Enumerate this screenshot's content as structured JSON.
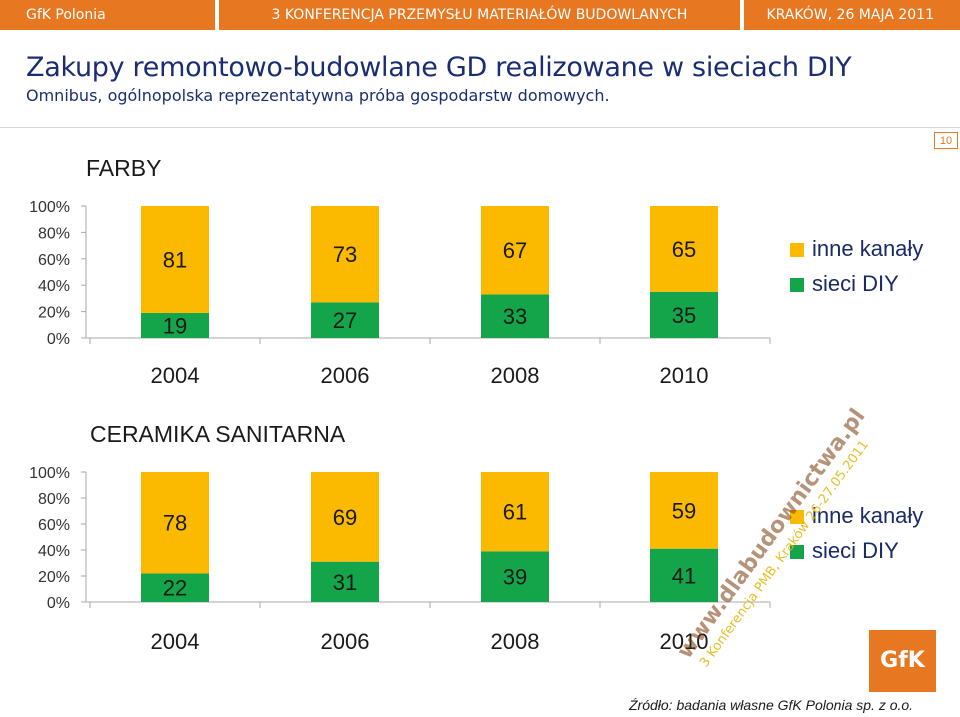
{
  "header": {
    "left": "GfK Polonia",
    "center": "3 KONFERENCJA PRZEMYSŁU MATERIAŁÓW BUDOWLANYCH",
    "right": "KRAKÓW, 26 MAJA 2011"
  },
  "slide": {
    "title": "Zakupy remontowo-budowlane GD realizowane w sieciach DIY",
    "subtitle": "Omnibus, ogólnopolska reprezentatywna próba gospodarstw domowych.",
    "page_number": "10"
  },
  "colors": {
    "accent": "#e87722",
    "inne": "#fbb900",
    "diy": "#14a54a"
  },
  "chart_data": [
    {
      "type": "bar",
      "stacked": true,
      "title": "FARBY",
      "categories": [
        "2004",
        "2006",
        "2008",
        "2010"
      ],
      "yticks": [
        "100%",
        "80%",
        "60%",
        "40%",
        "20%",
        "0%"
      ],
      "ylim": [
        0,
        100
      ],
      "legend_position": "right",
      "series": [
        {
          "name": "sieci DIY",
          "color": "#14a54a",
          "values": [
            19,
            27,
            33,
            35
          ]
        },
        {
          "name": "inne kanały",
          "color": "#fbb900",
          "values": [
            81,
            73,
            67,
            65
          ]
        }
      ]
    },
    {
      "type": "bar",
      "stacked": true,
      "title": "CERAMIKA SANITARNA",
      "categories": [
        "2004",
        "2006",
        "2008",
        "2010"
      ],
      "yticks": [
        "100%",
        "80%",
        "60%",
        "40%",
        "20%",
        "0%"
      ],
      "ylim": [
        0,
        100
      ],
      "legend_position": "right",
      "series": [
        {
          "name": "sieci DIY",
          "color": "#14a54a",
          "values": [
            22,
            31,
            39,
            41
          ]
        },
        {
          "name": "inne kanały",
          "color": "#fbb900",
          "values": [
            78,
            69,
            61,
            59
          ]
        }
      ]
    }
  ],
  "watermark": {
    "line1": "www.dlabudownictwa.pl",
    "line2": "3 Konferencja PMB, Kraków 26-27.05.2011"
  },
  "logo": "GfK",
  "footer": {
    "source": "Źródło: badania własne GfK Polonia sp. z o.o."
  }
}
